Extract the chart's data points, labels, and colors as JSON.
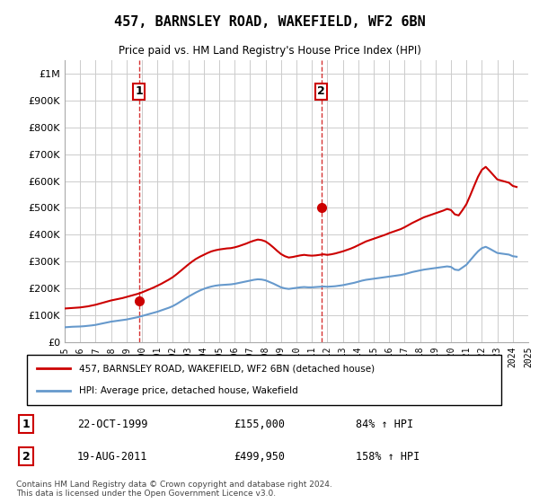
{
  "title": "457, BARNSLEY ROAD, WAKEFIELD, WF2 6BN",
  "subtitle": "Price paid vs. HM Land Registry's House Price Index (HPI)",
  "ylabel": "",
  "ylim": [
    0,
    1050000
  ],
  "yticks": [
    0,
    100000,
    200000,
    300000,
    400000,
    500000,
    600000,
    700000,
    800000,
    900000,
    1000000
  ],
  "ytick_labels": [
    "£0",
    "£100K",
    "£200K",
    "£300K",
    "£400K",
    "£500K",
    "£600K",
    "£700K",
    "£800K",
    "£900K",
    "£1M"
  ],
  "background_color": "#ffffff",
  "plot_bg_color": "#ffffff",
  "grid_color": "#cccccc",
  "hpi_color": "#6699cc",
  "price_color": "#cc0000",
  "vline_color": "#cc0000",
  "sale1": {
    "date_label": "22-OCT-1999",
    "year": 1999.8,
    "price": 155000,
    "hpi_pct": "84%",
    "marker_label": "1"
  },
  "sale2": {
    "date_label": "19-AUG-2011",
    "year": 2011.6,
    "price": 499950,
    "hpi_pct": "158%",
    "marker_label": "2"
  },
  "legend_label_price": "457, BARNSLEY ROAD, WAKEFIELD, WF2 6BN (detached house)",
  "legend_label_hpi": "HPI: Average price, detached house, Wakefield",
  "footer": "Contains HM Land Registry data © Crown copyright and database right 2024.\nThis data is licensed under the Open Government Licence v3.0.",
  "hpi_data": {
    "years": [
      1995.0,
      1995.25,
      1995.5,
      1995.75,
      1996.0,
      1996.25,
      1996.5,
      1996.75,
      1997.0,
      1997.25,
      1997.5,
      1997.75,
      1998.0,
      1998.25,
      1998.5,
      1998.75,
      1999.0,
      1999.25,
      1999.5,
      1999.75,
      2000.0,
      2000.25,
      2000.5,
      2000.75,
      2001.0,
      2001.25,
      2001.5,
      2001.75,
      2002.0,
      2002.25,
      2002.5,
      2002.75,
      2003.0,
      2003.25,
      2003.5,
      2003.75,
      2004.0,
      2004.25,
      2004.5,
      2004.75,
      2005.0,
      2005.25,
      2005.5,
      2005.75,
      2006.0,
      2006.25,
      2006.5,
      2006.75,
      2007.0,
      2007.25,
      2007.5,
      2007.75,
      2008.0,
      2008.25,
      2008.5,
      2008.75,
      2009.0,
      2009.25,
      2009.5,
      2009.75,
      2010.0,
      2010.25,
      2010.5,
      2010.75,
      2011.0,
      2011.25,
      2011.5,
      2011.75,
      2012.0,
      2012.25,
      2012.5,
      2012.75,
      2013.0,
      2013.25,
      2013.5,
      2013.75,
      2014.0,
      2014.25,
      2014.5,
      2014.75,
      2015.0,
      2015.25,
      2015.5,
      2015.75,
      2016.0,
      2016.25,
      2016.5,
      2016.75,
      2017.0,
      2017.25,
      2017.5,
      2017.75,
      2018.0,
      2018.25,
      2018.5,
      2018.75,
      2019.0,
      2019.25,
      2019.5,
      2019.75,
      2020.0,
      2020.25,
      2020.5,
      2020.75,
      2021.0,
      2021.25,
      2021.5,
      2021.75,
      2022.0,
      2022.25,
      2022.5,
      2022.75,
      2023.0,
      2023.25,
      2023.5,
      2023.75,
      2024.0,
      2024.25
    ],
    "values": [
      55000,
      56000,
      57000,
      57500,
      58000,
      59000,
      60500,
      62000,
      64000,
      67000,
      70000,
      73000,
      76000,
      78000,
      80000,
      82000,
      84000,
      87000,
      90000,
      93000,
      97000,
      101000,
      105000,
      109000,
      113000,
      118000,
      123000,
      128000,
      134000,
      142000,
      151000,
      160000,
      169000,
      177000,
      185000,
      192000,
      198000,
      203000,
      207000,
      210000,
      212000,
      213000,
      214000,
      215000,
      217000,
      220000,
      223000,
      226000,
      229000,
      232000,
      234000,
      233000,
      230000,
      224000,
      218000,
      211000,
      204000,
      200000,
      198000,
      200000,
      202000,
      204000,
      205000,
      204000,
      204000,
      205000,
      206000,
      207000,
      206000,
      207000,
      208000,
      210000,
      212000,
      215000,
      218000,
      221000,
      225000,
      229000,
      232000,
      234000,
      236000,
      238000,
      240000,
      242000,
      244000,
      246000,
      248000,
      250000,
      253000,
      257000,
      261000,
      264000,
      267000,
      270000,
      272000,
      274000,
      276000,
      278000,
      280000,
      282000,
      280000,
      270000,
      268000,
      278000,
      288000,
      305000,
      322000,
      338000,
      350000,
      355000,
      348000,
      340000,
      332000,
      330000,
      328000,
      326000,
      320000,
      318000
    ]
  },
  "price_data": {
    "years": [
      1995.0,
      1995.25,
      1995.5,
      1995.75,
      1996.0,
      1996.25,
      1996.5,
      1996.75,
      1997.0,
      1997.25,
      1997.5,
      1997.75,
      1998.0,
      1998.25,
      1998.5,
      1998.75,
      1999.0,
      1999.25,
      1999.5,
      1999.75,
      2000.0,
      2000.25,
      2000.5,
      2000.75,
      2001.0,
      2001.25,
      2001.5,
      2001.75,
      2002.0,
      2002.25,
      2002.5,
      2002.75,
      2003.0,
      2003.25,
      2003.5,
      2003.75,
      2004.0,
      2004.25,
      2004.5,
      2004.75,
      2005.0,
      2005.25,
      2005.5,
      2005.75,
      2006.0,
      2006.25,
      2006.5,
      2006.75,
      2007.0,
      2007.25,
      2007.5,
      2007.75,
      2008.0,
      2008.25,
      2008.5,
      2008.75,
      2009.0,
      2009.25,
      2009.5,
      2009.75,
      2010.0,
      2010.25,
      2010.5,
      2010.75,
      2011.0,
      2011.25,
      2011.5,
      2011.75,
      2012.0,
      2012.25,
      2012.5,
      2012.75,
      2013.0,
      2013.25,
      2013.5,
      2013.75,
      2014.0,
      2014.25,
      2014.5,
      2014.75,
      2015.0,
      2015.25,
      2015.5,
      2015.75,
      2016.0,
      2016.25,
      2016.5,
      2016.75,
      2017.0,
      2017.25,
      2017.5,
      2017.75,
      2018.0,
      2018.25,
      2018.5,
      2018.75,
      2019.0,
      2019.25,
      2019.5,
      2019.75,
      2020.0,
      2020.25,
      2020.5,
      2020.75,
      2021.0,
      2021.25,
      2021.5,
      2021.75,
      2022.0,
      2022.25,
      2022.5,
      2022.75,
      2023.0,
      2023.25,
      2023.5,
      2023.75,
      2024.0,
      2024.25
    ],
    "values": [
      125000,
      126000,
      127000,
      128000,
      129000,
      131000,
      133000,
      136000,
      139000,
      143000,
      147000,
      151000,
      155000,
      158000,
      161000,
      164000,
      168000,
      172000,
      176000,
      180000,
      185000,
      191000,
      197000,
      203000,
      210000,
      217000,
      225000,
      233000,
      242000,
      253000,
      265000,
      277000,
      289000,
      300000,
      310000,
      318000,
      325000,
      332000,
      338000,
      342000,
      345000,
      347000,
      349000,
      350000,
      353000,
      357000,
      362000,
      367000,
      373000,
      378000,
      382000,
      380000,
      375000,
      365000,
      353000,
      340000,
      328000,
      320000,
      315000,
      317000,
      320000,
      323000,
      325000,
      323000,
      322000,
      323000,
      325000,
      327000,
      325000,
      327000,
      330000,
      334000,
      338000,
      343000,
      348000,
      354000,
      361000,
      368000,
      375000,
      380000,
      385000,
      390000,
      395000,
      400000,
      406000,
      411000,
      416000,
      421000,
      428000,
      436000,
      444000,
      451000,
      458000,
      465000,
      470000,
      475000,
      480000,
      485000,
      490000,
      496000,
      492000,
      476000,
      472000,
      492000,
      514000,
      547000,
      582000,
      616000,
      642000,
      653000,
      638000,
      622000,
      606000,
      602000,
      598000,
      594000,
      582000,
      578000
    ]
  }
}
